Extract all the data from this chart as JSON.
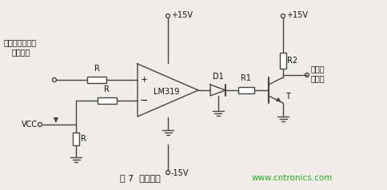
{
  "title": "图 7  过流保护",
  "website": "www.cntronics.com",
  "bg_color": "#f0ede8",
  "line_color": "#444444",
  "text_color": "#111111",
  "green_color": "#22aa22",
  "label_hall": "霊尔电流传感器",
  "label_sample": "采样信号",
  "label_VCC": "VCC",
  "label_p15_left": "+15V",
  "label_m15": "-15V",
  "label_p15_right": "+15V",
  "label_LM319": "LM319",
  "label_D1": "D1",
  "label_R1": "R1",
  "label_R2": "R2",
  "label_R": "R",
  "label_T": "T",
  "label_busover1": "母线过",
  "label_busover2": "流信号"
}
